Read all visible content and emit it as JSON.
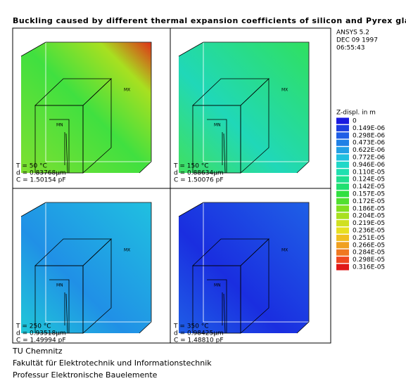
{
  "title": "Buckling caused by different thermal expansion coefficients of silicon and Pyrex glass",
  "info": [
    "ANSYS 5.2",
    "DEC 09 1997",
    "06:55:43"
  ],
  "legend": {
    "title": "Z-displ. in m",
    "labels": [
      "0",
      "0.149E-06",
      "0.298E-06",
      "0.473E-06",
      "0.622E-06",
      "0.772E-06",
      "0.946E-06",
      "0.110E-05",
      "0.124E-05",
      "0.142E-05",
      "0.157E-05",
      "0.172E-05",
      "0.186E-05",
      "0.204E-05",
      "0.219E-05",
      "0.236E-05",
      "0.251E-05",
      "0.266E-05",
      "0.284E-05",
      "0.298E-05",
      "0.316E-05"
    ],
    "colors": [
      "#1a1ae0",
      "#1e3fe0",
      "#1f5ee6",
      "#1f80e6",
      "#22a0e6",
      "#20c0e0",
      "#20d8c8",
      "#20e0b0",
      "#20e090",
      "#20e070",
      "#30e040",
      "#50e030",
      "#80e020",
      "#a8e020",
      "#d0e020",
      "#e8e020",
      "#f0c020",
      "#f0a020",
      "#f07820",
      "#f04820",
      "#e01818"
    ]
  },
  "panels": [
    {
      "max": "MX",
      "min": "MN",
      "lines": [
        "T = 50 °C",
        "d = 0.83768µm",
        "C = 1.50154 pF"
      ]
    },
    {
      "max": "MX",
      "min": "MN",
      "lines": [
        "T = 150 °C",
        "d = 0.88634µm",
        "C = 1.50076 pF"
      ]
    },
    {
      "max": "MX",
      "min": "MN",
      "lines": [
        "T = 250 °C",
        "d = 0.93518µm",
        "C = 1.49994 pF"
      ]
    },
    {
      "max": "MX",
      "min": "MN",
      "lines": [
        "T = 350 °C",
        "d = 0.98425µm",
        "C = 1.48810 pF"
      ]
    }
  ],
  "footer": [
    "TU Chemnitz",
    "Fakultät für Elektrotechnik und Informationstechnik",
    "Professur Elektronische Bauelemente"
  ]
}
